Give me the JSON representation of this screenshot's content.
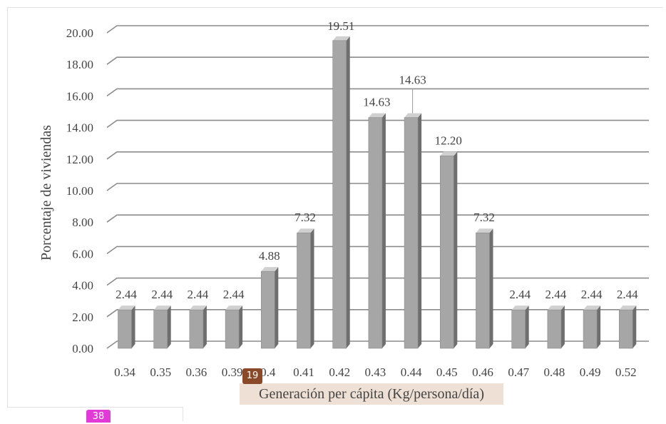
{
  "chart_data": {
    "type": "bar",
    "categories": [
      "0.34",
      "0.35",
      "0.36",
      "0.39",
      "0.4",
      "0.41",
      "0.42",
      "0.43",
      "0.44",
      "0.45",
      "0.46",
      "0.47",
      "0.48",
      "0.49",
      "0.52"
    ],
    "values": [
      2.44,
      2.44,
      2.44,
      2.44,
      4.88,
      7.32,
      19.51,
      14.63,
      14.63,
      12.2,
      7.32,
      2.44,
      2.44,
      2.44,
      2.44
    ],
    "data_labels": [
      "2.44",
      "2.44",
      "2.44",
      "2.44",
      "4.88",
      "7.32",
      "19.51",
      "14.63",
      "14.63",
      "12.20",
      "7.32",
      "2.44",
      "2.44",
      "2.44",
      "2.44"
    ],
    "title": "",
    "xlabel": "Generación per cápita (Kg/persona/día)",
    "ylabel": "Porcentaje de viviendas",
    "ylim": [
      0,
      20
    ],
    "yticks": [
      "0.00",
      "2.00",
      "4.00",
      "6.00",
      "8.00",
      "10.00",
      "12.00",
      "14.00",
      "16.00",
      "18.00",
      "20.00"
    ],
    "grid": true,
    "bar_style": "3d",
    "colors": {
      "bar_front": "#a6a6a6",
      "bar_side": "#6e6e6e",
      "bar_top": "#d0d0d0",
      "grid": "#8c8c8c"
    }
  },
  "badges": {
    "figure_number": "19",
    "page_number": "38"
  }
}
